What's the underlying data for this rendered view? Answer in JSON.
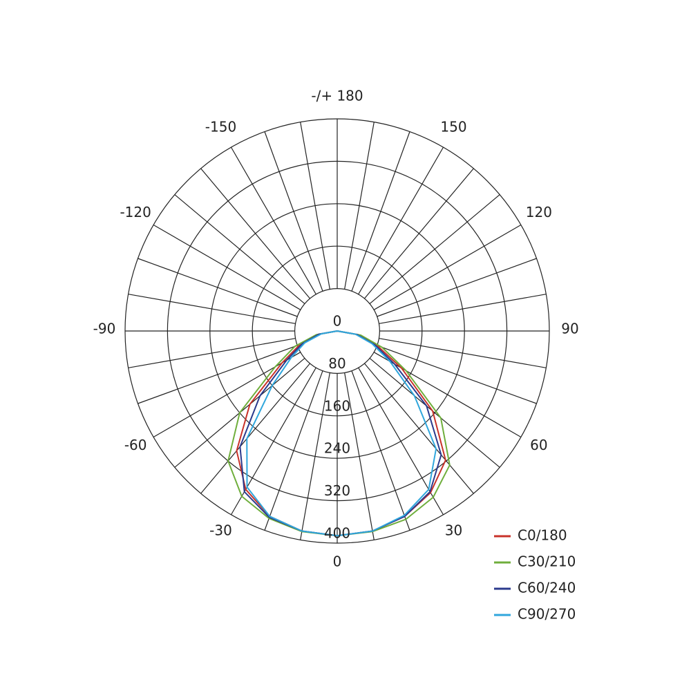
{
  "chart_data": {
    "type": "polar",
    "angles": [
      -90,
      -80,
      -70,
      -60,
      -50,
      -40,
      -30,
      -20,
      -10,
      0,
      10,
      20,
      30,
      40,
      50,
      60,
      70,
      80,
      90
    ],
    "series": [
      {
        "name": "C0/180",
        "color": "#c8322a",
        "values": [
          0,
          35,
          75,
          120,
          215,
          295,
          345,
          372,
          383,
          386,
          383,
          372,
          352,
          318,
          235,
          140,
          80,
          40,
          0
        ]
      },
      {
        "name": "C30/210",
        "color": "#6fae3c",
        "values": [
          0,
          40,
          85,
          135,
          240,
          320,
          360,
          376,
          384,
          386,
          384,
          378,
          362,
          330,
          255,
          150,
          90,
          45,
          0
        ]
      },
      {
        "name": "C60/240",
        "color": "#2b3a8c",
        "values": [
          0,
          35,
          70,
          110,
          190,
          285,
          350,
          374,
          383,
          386,
          383,
          372,
          350,
          305,
          220,
          125,
          75,
          38,
          0
        ]
      },
      {
        "name": "C90/270",
        "color": "#2fa6dc",
        "values": [
          0,
          30,
          65,
          100,
          160,
          265,
          340,
          372,
          383,
          386,
          383,
          370,
          345,
          290,
          190,
          115,
          70,
          35,
          0
        ]
      }
    ],
    "rlim": [
      0,
      400
    ],
    "rticks": [
      0,
      80,
      160,
      240,
      320,
      400
    ],
    "angle_ticks": [
      0,
      30,
      60,
      90,
      120,
      150,
      {
        "value": 180,
        "label": "-/+ 180"
      },
      -150,
      -120,
      -90,
      -60,
      -30
    ],
    "grid": true,
    "legend": "bottom-right"
  }
}
